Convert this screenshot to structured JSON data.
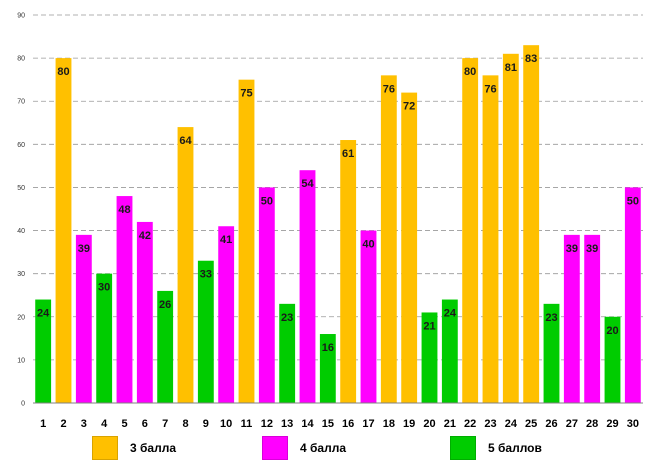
{
  "chart_data": {
    "type": "bar",
    "title": "",
    "xlabel": "",
    "ylabel": "",
    "ylim": [
      0,
      90
    ],
    "yticks": [
      0,
      10,
      20,
      30,
      40,
      50,
      60,
      70,
      80,
      90
    ],
    "grid": true,
    "legend_position": "bottom",
    "categories": [
      "1",
      "2",
      "3",
      "4",
      "5",
      "6",
      "7",
      "8",
      "9",
      "10",
      "11",
      "12",
      "13",
      "14",
      "15",
      "16",
      "17",
      "18",
      "19",
      "20",
      "21",
      "22",
      "23",
      "24",
      "25",
      "26",
      "27",
      "28",
      "29",
      "30"
    ],
    "values": [
      24,
      80,
      39,
      30,
      48,
      42,
      26,
      64,
      33,
      41,
      75,
      50,
      23,
      54,
      16,
      61,
      40,
      76,
      72,
      21,
      24,
      80,
      76,
      81,
      83,
      23,
      39,
      39,
      20,
      50
    ],
    "groups": [
      "5",
      "3",
      "4",
      "5",
      "4",
      "4",
      "5",
      "3",
      "5",
      "4",
      "3",
      "4",
      "5",
      "4",
      "5",
      "3",
      "4",
      "3",
      "3",
      "5",
      "5",
      "3",
      "3",
      "3",
      "3",
      "5",
      "4",
      "4",
      "5",
      "4"
    ],
    "legend": [
      {
        "key": "3",
        "label": "3 балла",
        "color": "#FFC000"
      },
      {
        "key": "4",
        "label": "4 балла",
        "color": "#FF00FF"
      },
      {
        "key": "5",
        "label": "5 баллов",
        "color": "#00CC00"
      }
    ]
  }
}
